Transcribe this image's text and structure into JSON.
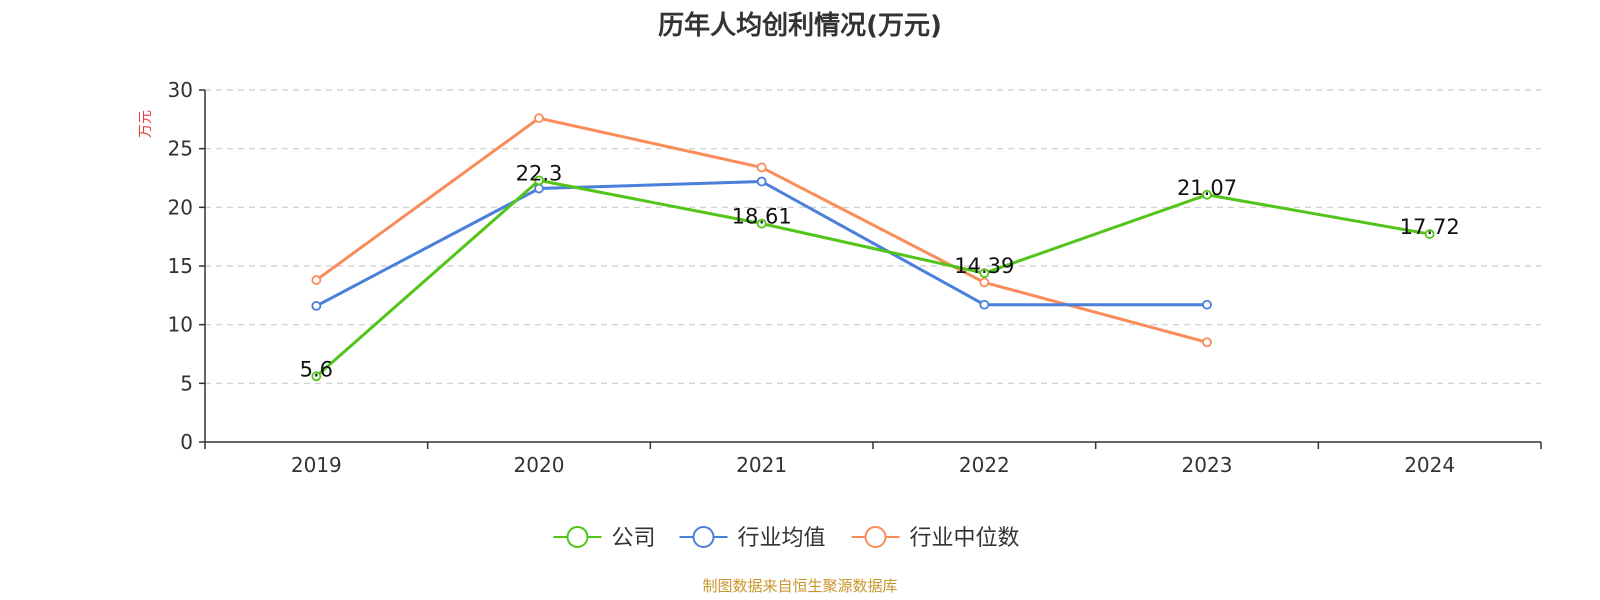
{
  "chart_data": {
    "type": "line",
    "title": "历年人均创利情况(万元)",
    "ylabel": "万元",
    "xlabel": "",
    "ylim": [
      0,
      30
    ],
    "yticks": [
      0,
      5,
      10,
      15,
      20,
      25,
      30
    ],
    "categories": [
      "2019",
      "2020",
      "2021",
      "2022",
      "2023",
      "2024"
    ],
    "grid": true,
    "legend_position": "bottom-center",
    "series": [
      {
        "name": "公司",
        "color": "#52c41a",
        "values": [
          5.6,
          22.3,
          18.61,
          14.39,
          21.07,
          17.72
        ],
        "labels": [
          "5.6",
          "22.3",
          "18.61",
          "14.39",
          "21.07",
          "17.72"
        ]
      },
      {
        "name": "行业均值",
        "color": "#4a7fdb",
        "values": [
          11.6,
          21.6,
          22.2,
          11.7,
          11.7,
          null
        ]
      },
      {
        "name": "行业中位数",
        "color": "#fa8c5a",
        "values": [
          13.8,
          27.6,
          23.4,
          13.6,
          8.5,
          null
        ]
      }
    ]
  },
  "ylabel_color": "#e8413c",
  "source": "制图数据来自恒生聚源数据库",
  "source_color": "#c9962a"
}
